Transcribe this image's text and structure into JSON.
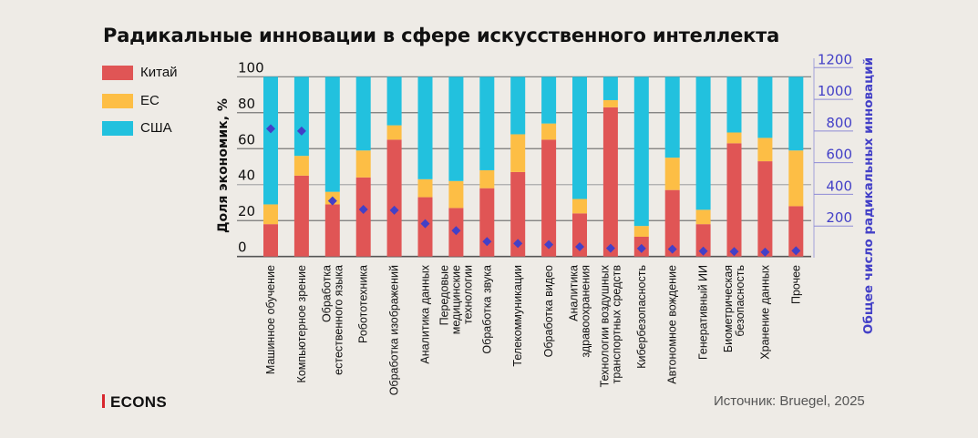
{
  "title": "Радикальные инновации в сфере искусственного интеллекта",
  "legend": [
    {
      "label": "Китай",
      "color": "#e05555"
    },
    {
      "label": "ЕС",
      "color": "#fdbe45"
    },
    {
      "label": "США",
      "color": "#22c1de"
    }
  ],
  "source": "Источник: Bruegel, 2025",
  "logo": "ECONS",
  "chart_data": {
    "type": "bar",
    "stacked": true,
    "title": "Радикальные инновации в сфере искусственного интеллекта",
    "ylabel": "Доля экономик, %",
    "ylabel_right": "Общее число радикальных инноваций",
    "ylim": [
      0,
      100
    ],
    "ylim_right": [
      0,
      1200
    ],
    "yticks": [
      0,
      20,
      40,
      60,
      80,
      100
    ],
    "yticks_right": [
      200,
      400,
      600,
      800,
      1000,
      1200
    ],
    "grid": true,
    "legend_position": "top-left",
    "categories": [
      "Машинное обучение",
      "Компьютерное зрение",
      "Обработка\nестественного языка",
      "Робототехника",
      "Обработка изображений",
      "Аналитика данных",
      "Передовые\nмедицинские\nтехнологии",
      "Обработка звука",
      "Телекоммуникации",
      "Обработка видео",
      "Аналитика\nздравоохранения",
      "Технологии воздушных\nтранспортных средств",
      "Кибербезопасность",
      "Автономное вождение",
      "Генеративный ИИ",
      "Биометрическая\nбезопасность",
      "Хранение данных",
      "Прочее"
    ],
    "series": [
      {
        "name": "Китай",
        "color": "#e05555",
        "values": [
          18,
          45,
          29,
          44,
          65,
          33,
          27,
          38,
          47,
          65,
          24,
          83,
          11,
          37,
          18,
          63,
          53,
          28
        ]
      },
      {
        "name": "ЕС",
        "color": "#fdbe45",
        "values": [
          11,
          11,
          7,
          15,
          8,
          10,
          15,
          10,
          21,
          9,
          8,
          4,
          6,
          18,
          8,
          6,
          13,
          31
        ]
      },
      {
        "name": "США",
        "color": "#22c1de",
        "values": [
          71,
          44,
          64,
          41,
          27,
          57,
          58,
          52,
          32,
          26,
          68,
          13,
          83,
          45,
          74,
          31,
          34,
          41
        ]
      }
    ],
    "total_series": {
      "name": "Общее число радикальных инноваций",
      "axis": "right",
      "marker": "diamond",
      "color": "#4340c7",
      "values": [
        814,
        800,
        359,
        305,
        300,
        215,
        171,
        102,
        90,
        83,
        69,
        60,
        58,
        54,
        42,
        39,
        35,
        44
      ]
    }
  }
}
